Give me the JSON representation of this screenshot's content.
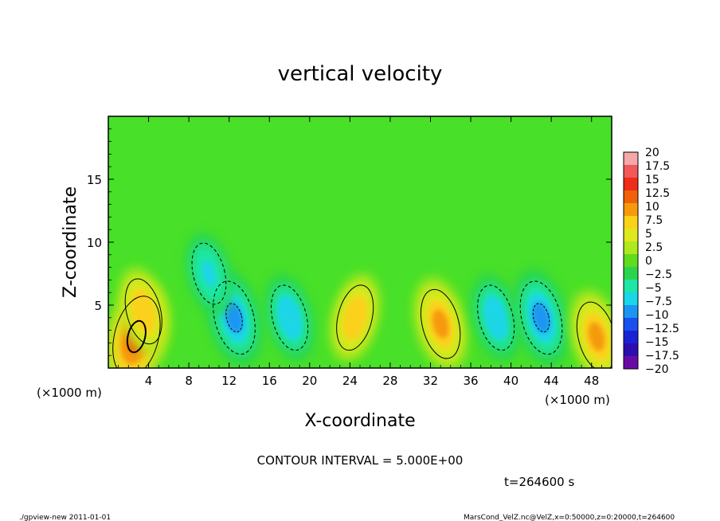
{
  "chart_data": {
    "type": "heatmap",
    "title": "vertical velocity",
    "xlabel": "X-coordinate",
    "ylabel": "Z-coordinate",
    "x_unit": "(×1000 m)",
    "y_unit": "(×1000 m)",
    "xlim": [
      0,
      50
    ],
    "ylim": [
      0,
      20
    ],
    "x_ticks": [
      4,
      8,
      12,
      16,
      20,
      24,
      28,
      32,
      36,
      40,
      44,
      48
    ],
    "y_ticks": [
      5,
      10,
      15
    ],
    "colorbar": {
      "min": -20,
      "max": 20,
      "labels": [
        "20",
        "17.5",
        "15",
        "12.5",
        "10",
        "7.5",
        "5",
        "2.5",
        "0",
        "−2.5",
        "−5",
        "−7.5",
        "−10",
        "−12.5",
        "−15",
        "−17.5",
        "−20"
      ],
      "colors": [
        "#f6a8a8",
        "#f25858",
        "#ee2c1a",
        "#f2600a",
        "#f69a0c",
        "#fad21a",
        "#dfe81e",
        "#b0e81e",
        "#60dc1e",
        "#2cd44c",
        "#1ee6a6",
        "#1ad6e6",
        "#1a96f2",
        "#1a50ee",
        "#1a22d6",
        "#2c0eb0",
        "#6a0aa6"
      ]
    },
    "contour_interval": "CONTOUR INTERVAL = 5.000E+00",
    "time": "t=264600 s",
    "features": [
      {
        "x": 2.8,
        "z": 2.5,
        "w": -1,
        "peak": 12
      },
      {
        "x": 3.5,
        "z": 4.5,
        "w": 1,
        "peak": 8
      },
      {
        "x": 12.5,
        "z": 4,
        "w": 1,
        "peak": -10
      },
      {
        "x": 10,
        "z": 7.5,
        "w": 1,
        "peak": -7
      },
      {
        "x": 18,
        "z": 4,
        "w": 1,
        "peak": -8
      },
      {
        "x": 24.5,
        "z": 4,
        "w": -1,
        "peak": 8
      },
      {
        "x": 33,
        "z": 3.5,
        "w": 1,
        "peak": 9
      },
      {
        "x": 38.5,
        "z": 4,
        "w": 1,
        "peak": -8
      },
      {
        "x": 43,
        "z": 4,
        "w": 1,
        "peak": -10
      },
      {
        "x": 48.5,
        "z": 2.5,
        "w": 1,
        "peak": 9
      }
    ]
  },
  "footer": {
    "left": "./gpview-new   2011-01-01",
    "right": "MarsCond_VelZ.nc@VelZ,x=0:50000,z=0:20000,t=264600"
  }
}
